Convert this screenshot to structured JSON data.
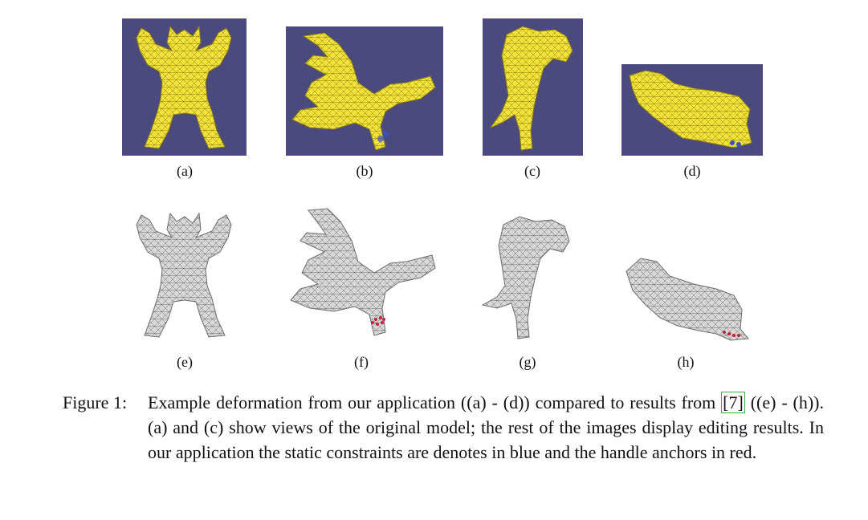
{
  "figure": {
    "subfigure_labels": [
      "(a)",
      "(b)",
      "(c)",
      "(d)",
      "(e)",
      "(f)",
      "(g)",
      "(h)"
    ],
    "colors": {
      "background_top": "#4b4a7e",
      "mesh_top": "#f3e23a",
      "mesh_bottom": "#d8d8d8",
      "constraint_blue": "#3a4fd0",
      "anchor_red": "#c0203a",
      "citation_box": "#3db33d"
    },
    "caption": {
      "label": "Figure 1:",
      "text_before_cite": "Example deformation from our application ((a) - (d)) compared to results from",
      "cite": "[7]",
      "text_after_cite": " ((e) - (h)). (a) and (c) show views of the original model; the rest of the images display editing results. In our application the static constraints are denotes in blue and the handle anchors in red."
    }
  }
}
